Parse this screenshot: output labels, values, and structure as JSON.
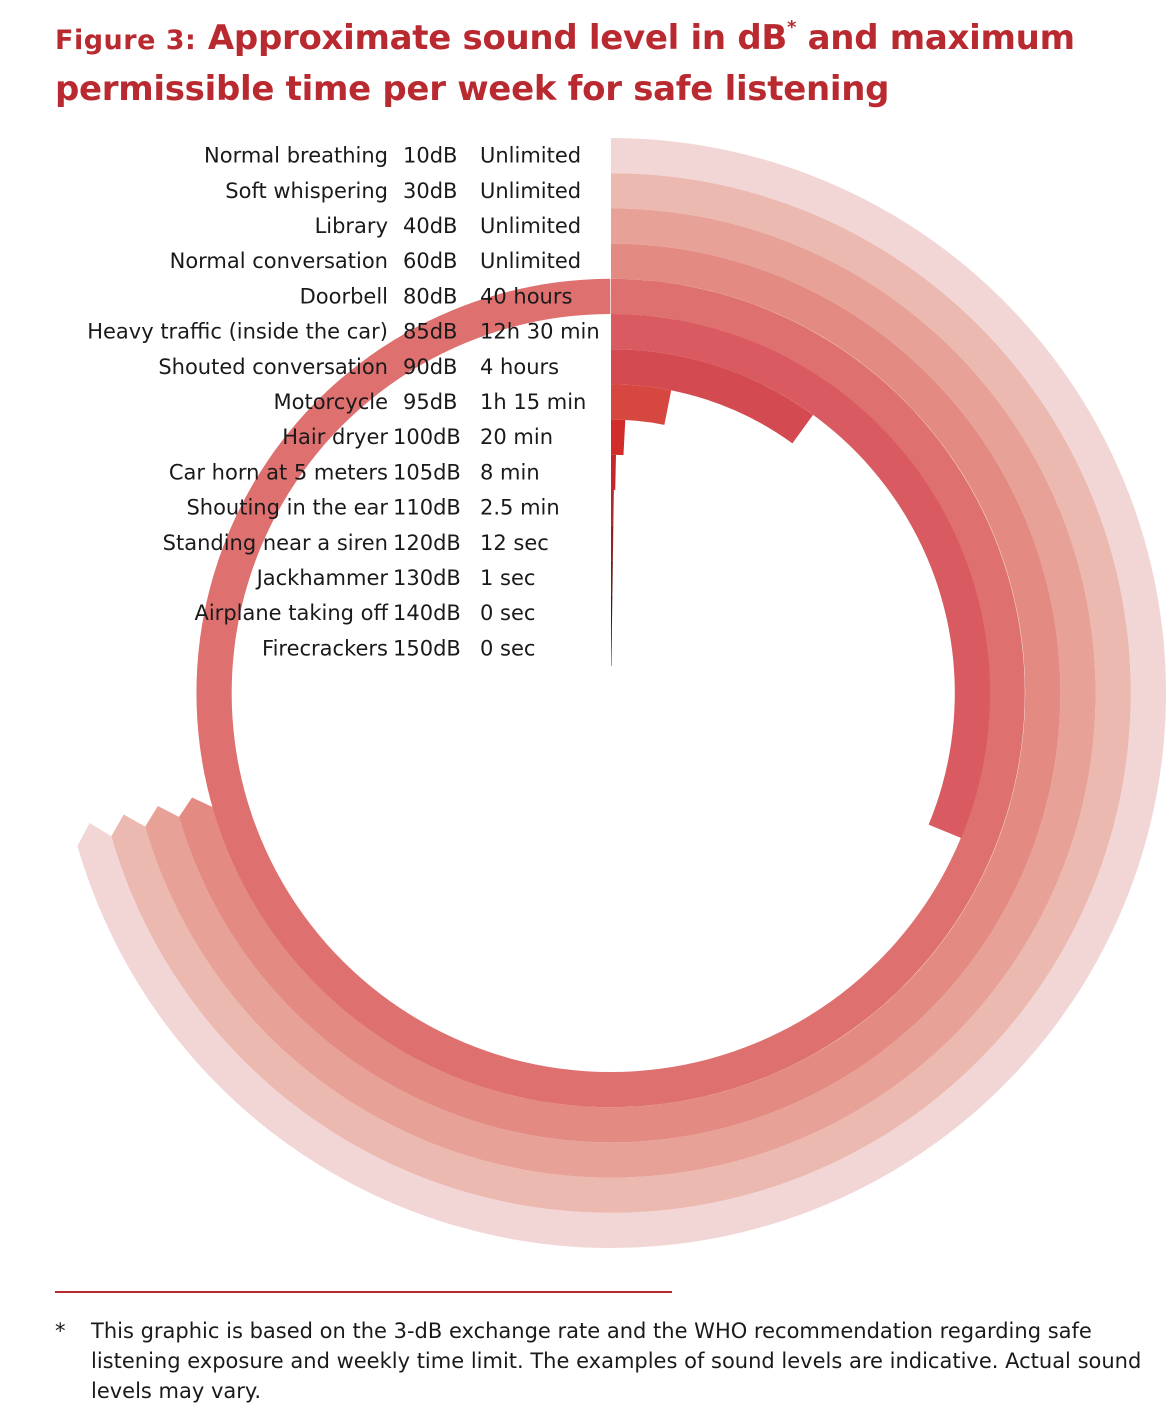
{
  "figure": {
    "label": "Figure 3:",
    "title_main": "Approximate sound level in dB",
    "title_marker": "*",
    "title_rest": " and maximum permissible time per week for safe listening"
  },
  "chart_data": {
    "type": "radial bar",
    "title": "Approximate sound level in dB* and maximum permissible time per week for safe listening",
    "unit": "hours per week",
    "full_circle_hours": 40,
    "colors": [
      "#f2d6d6",
      "#ecb9b0",
      "#e7a196",
      "#e38b82",
      "#df7070",
      "#d95a60",
      "#d44a51",
      "#d5473f",
      "#d12c2a",
      "#c4282a",
      "#b1292a",
      "#8c241f",
      "#6e1d19",
      "#4a1610",
      "#2c0f0b"
    ],
    "rows": [
      {
        "source": "Normal breathing",
        "level": "10dB",
        "time": "Unlimited",
        "db": 10,
        "hours": "Unlimited"
      },
      {
        "source": "Soft whispering",
        "level": "30dB",
        "time": "Unlimited",
        "db": 30,
        "hours": "Unlimited"
      },
      {
        "source": "Library",
        "level": "40dB",
        "time": "Unlimited",
        "db": 40,
        "hours": "Unlimited"
      },
      {
        "source": "Normal conversation",
        "level": "60dB",
        "time": "Unlimited",
        "db": 60,
        "hours": "Unlimited"
      },
      {
        "source": "Doorbell",
        "level": "80dB",
        "time": "40 hours",
        "db": 80,
        "hours": 40
      },
      {
        "source": "Heavy traffic (inside the car)",
        "level": "85dB",
        "time": "12h 30 min",
        "db": 85,
        "hours": 12.5
      },
      {
        "source": "Shouted conversation",
        "level": "90dB",
        "time": "4 hours",
        "db": 90,
        "hours": 4
      },
      {
        "source": "Motorcycle",
        "level": "95dB",
        "time": "1h 15 min",
        "db": 95,
        "hours": 1.25
      },
      {
        "source": "Hair dryer",
        "level": "100dB",
        "time": "20 min",
        "db": 100,
        "hours": 0.333
      },
      {
        "source": "Car horn at 5 meters",
        "level": "105dB",
        "time": "8 min",
        "db": 105,
        "hours": 0.133
      },
      {
        "source": "Shouting in the ear",
        "level": "110dB",
        "time": "2.5 min",
        "db": 110,
        "hours": 0.042
      },
      {
        "source": "Standing near a siren",
        "level": "120dB",
        "time": "12 sec",
        "db": 120,
        "hours": 0.0033
      },
      {
        "source": "Jackhammer",
        "level": "130dB",
        "time": "1 sec",
        "db": 130,
        "hours": 0.0003
      },
      {
        "source": "Airplane taking off",
        "level": "140dB",
        "time": "0 sec",
        "db": 140,
        "hours": 0
      },
      {
        "source": "Firecrackers",
        "level": "150dB",
        "time": "0 sec",
        "db": 150,
        "hours": 0
      }
    ]
  },
  "footnote": {
    "marker": "*",
    "text": "This graphic is based on the 3-dB exchange rate and the WHO recommendation regarding safe listening exposure and weekly time limit. The examples of sound levels are indicative. Actual sound levels may vary."
  }
}
